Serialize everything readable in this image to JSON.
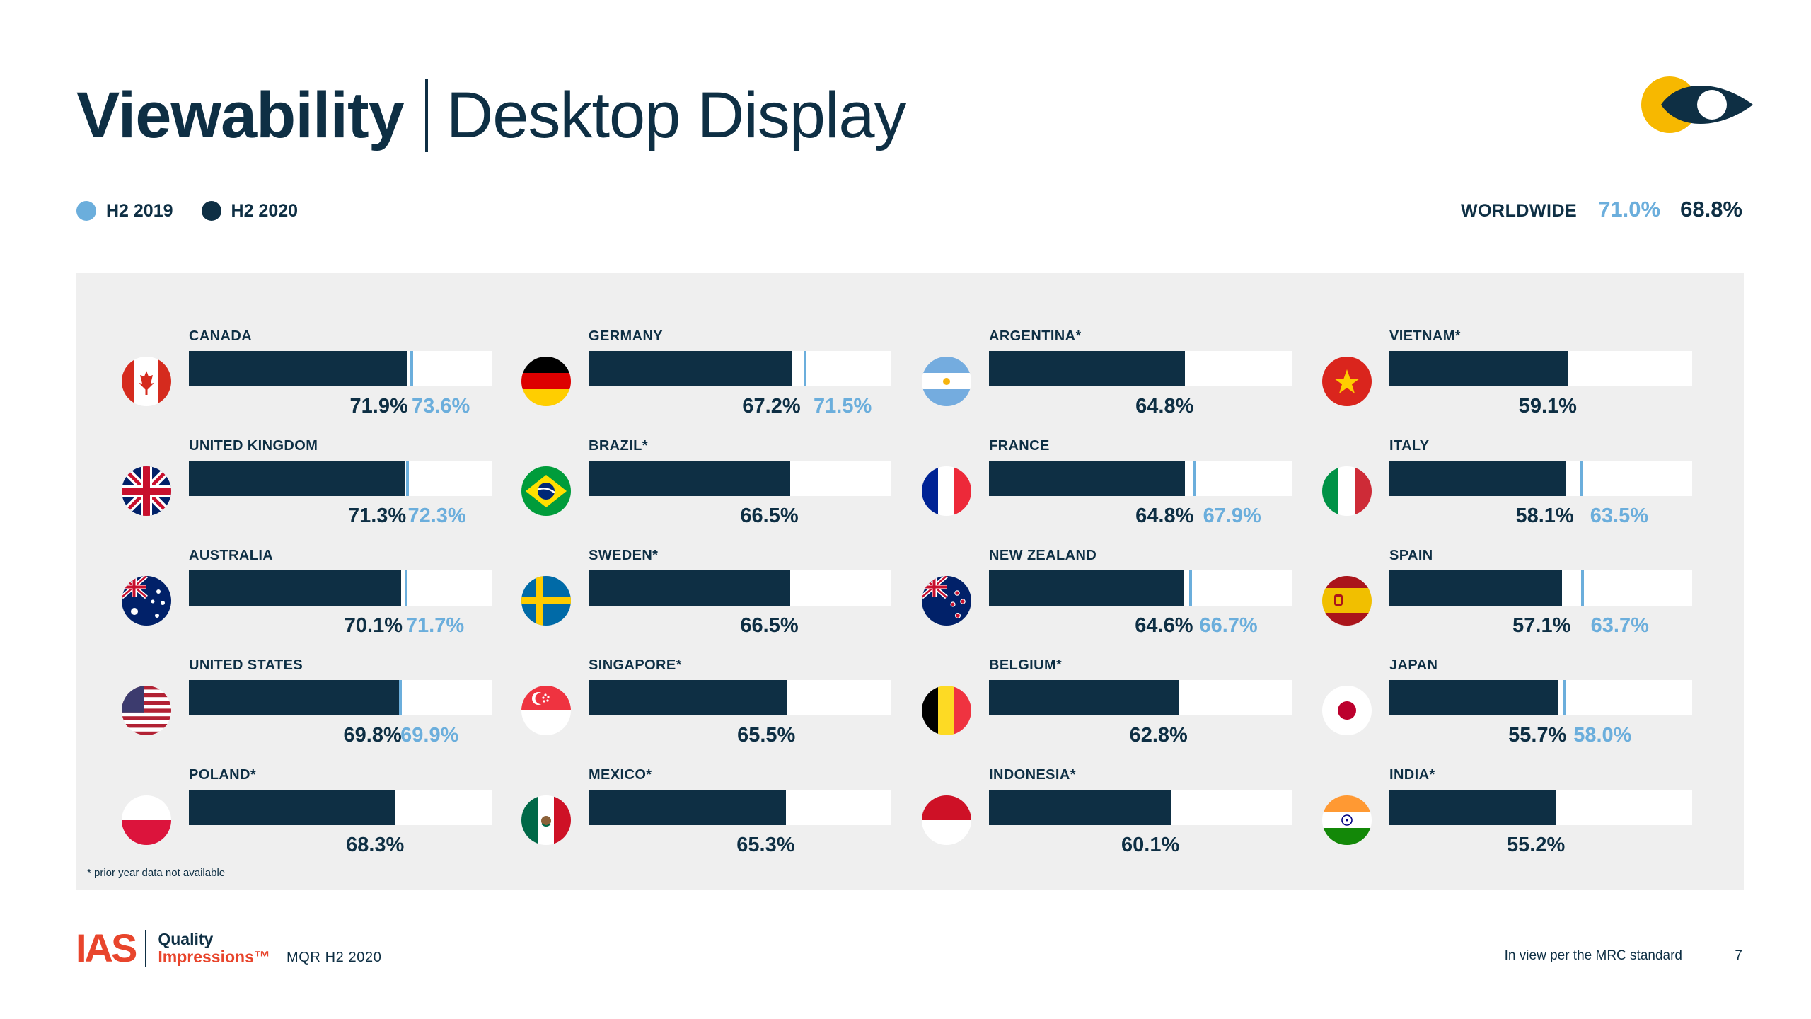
{
  "title": {
    "bold": "Viewability",
    "light": "Desktop Display"
  },
  "legend": [
    {
      "label": "H2 2019",
      "color": "#6baedc"
    },
    {
      "label": "H2 2020",
      "color": "#0e2f44"
    }
  ],
  "worldwide": {
    "label": "WORLDWIDE",
    "h2_2019": "71.0%",
    "h2_2020": "68.8%"
  },
  "colors": {
    "h2_2020": "#0e2f44",
    "h2_2019": "#6baedc",
    "panel": "#efefef",
    "track": "#ffffff",
    "brand_red": "#e8452c",
    "logo_yellow": "#f7b800"
  },
  "chart_data": {
    "type": "bar",
    "orientation": "horizontal",
    "scale": [
      0,
      100
    ],
    "legend_placement": "top-left",
    "series": [
      {
        "name": "H2 2019",
        "color": "#6baedc"
      },
      {
        "name": "H2 2020",
        "color": "#0e2f44"
      }
    ],
    "countries": [
      {
        "name": "CANADA",
        "flag": "canada-flag-icon",
        "h2_2020": 71.9,
        "h2_2019": 73.6,
        "label_2020": "71.9%",
        "label_2019": "73.6%"
      },
      {
        "name": "UNITED KINGDOM",
        "flag": "uk-flag-icon",
        "h2_2020": 71.3,
        "h2_2019": 72.3,
        "label_2020": "71.3%",
        "label_2019": "72.3%"
      },
      {
        "name": "AUSTRALIA",
        "flag": "australia-flag-icon",
        "h2_2020": 70.1,
        "h2_2019": 71.7,
        "label_2020": "70.1%",
        "label_2019": "71.7%"
      },
      {
        "name": "UNITED STATES",
        "flag": "us-flag-icon",
        "h2_2020": 69.8,
        "h2_2019": 69.9,
        "label_2020": "69.8%",
        "label_2019": "69.9%"
      },
      {
        "name": "POLAND*",
        "flag": "poland-flag-icon",
        "h2_2020": 68.3,
        "h2_2019": null,
        "label_2020": "68.3%",
        "label_2019": null
      },
      {
        "name": "GERMANY",
        "flag": "germany-flag-icon",
        "h2_2020": 67.2,
        "h2_2019": 71.5,
        "label_2020": "67.2%",
        "label_2019": "71.5%"
      },
      {
        "name": "BRAZIL*",
        "flag": "brazil-flag-icon",
        "h2_2020": 66.5,
        "h2_2019": null,
        "label_2020": "66.5%",
        "label_2019": null
      },
      {
        "name": "SWEDEN*",
        "flag": "sweden-flag-icon",
        "h2_2020": 66.5,
        "h2_2019": null,
        "label_2020": "66.5%",
        "label_2019": null
      },
      {
        "name": "SINGAPORE*",
        "flag": "singapore-flag-icon",
        "h2_2020": 65.5,
        "h2_2019": null,
        "label_2020": "65.5%",
        "label_2019": null
      },
      {
        "name": "MEXICO*",
        "flag": "mexico-flag-icon",
        "h2_2020": 65.3,
        "h2_2019": null,
        "label_2020": "65.3%",
        "label_2019": null
      },
      {
        "name": "ARGENTINA*",
        "flag": "argentina-flag-icon",
        "h2_2020": 64.8,
        "h2_2019": null,
        "label_2020": "64.8%",
        "label_2019": null
      },
      {
        "name": "FRANCE",
        "flag": "france-flag-icon",
        "h2_2020": 64.8,
        "h2_2019": 67.9,
        "label_2020": "64.8%",
        "label_2019": "67.9%"
      },
      {
        "name": "NEW ZEALAND",
        "flag": "new-zealand-flag-icon",
        "h2_2020": 64.6,
        "h2_2019": 66.7,
        "label_2020": "64.6%",
        "label_2019": "66.7%"
      },
      {
        "name": "BELGIUM*",
        "flag": "belgium-flag-icon",
        "h2_2020": 62.8,
        "h2_2019": null,
        "label_2020": "62.8%",
        "label_2019": null
      },
      {
        "name": "INDONESIA*",
        "flag": "indonesia-flag-icon",
        "h2_2020": 60.1,
        "h2_2019": null,
        "label_2020": "60.1%",
        "label_2019": null
      },
      {
        "name": "VIETNAM*",
        "flag": "vietnam-flag-icon",
        "h2_2020": 59.1,
        "h2_2019": null,
        "label_2020": "59.1%",
        "label_2019": null
      },
      {
        "name": "ITALY",
        "flag": "italy-flag-icon",
        "h2_2020": 58.1,
        "h2_2019": 63.5,
        "label_2020": "58.1%",
        "label_2019": "63.5%"
      },
      {
        "name": "SPAIN",
        "flag": "spain-flag-icon",
        "h2_2020": 57.1,
        "h2_2019": 63.7,
        "label_2020": "57.1%",
        "label_2019": "63.7%"
      },
      {
        "name": "JAPAN",
        "flag": "japan-flag-icon",
        "h2_2020": 55.7,
        "h2_2019": 58.0,
        "label_2020": "55.7%",
        "label_2019": "58.0%"
      },
      {
        "name": "INDIA*",
        "flag": "india-flag-icon",
        "h2_2020": 55.2,
        "h2_2019": null,
        "label_2020": "55.2%",
        "label_2019": null
      }
    ]
  },
  "footnote": "* prior year data not available",
  "footer": {
    "brand_letters": "IAS",
    "brand_line1": "Quality",
    "brand_line2": "Impressions™",
    "report": "MQR H2 2020",
    "note": "In view per the MRC standard",
    "page_number": "7"
  }
}
